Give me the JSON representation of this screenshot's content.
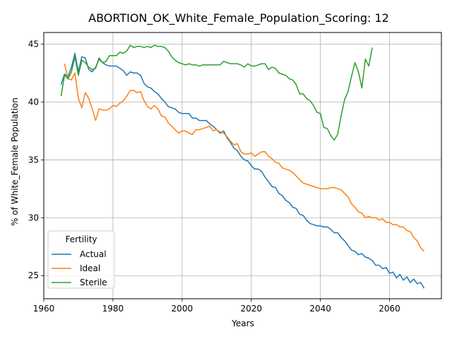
{
  "chart_data": {
    "type": "line",
    "title": "ABORTION_OK_White_Female_Population_Scoring: 12",
    "xlabel": "Years",
    "ylabel": "% of White_Female Population",
    "xlim": [
      1960,
      2075
    ],
    "ylim": [
      23,
      46
    ],
    "xticks": [
      1960,
      1980,
      2000,
      2020,
      2040,
      2060
    ],
    "yticks": [
      25,
      30,
      35,
      40,
      45
    ],
    "grid": true,
    "legend": {
      "title": "Fertility",
      "placement": "lower-left"
    },
    "series": [
      {
        "name": "Actual",
        "color": "#1f77b4",
        "points": [
          [
            1965,
            41.5
          ],
          [
            1966,
            42.4
          ],
          [
            1967,
            42.2
          ],
          [
            1968,
            43.0
          ],
          [
            1969,
            44.2
          ],
          [
            1970,
            42.6
          ],
          [
            1971,
            43.9
          ],
          [
            1972,
            43.8
          ],
          [
            1973,
            42.8
          ],
          [
            1974,
            42.6
          ],
          [
            1975,
            43.0
          ],
          [
            1976,
            43.7
          ],
          [
            1977,
            43.4
          ],
          [
            1978,
            43.2
          ],
          [
            1979,
            43.1
          ],
          [
            1980,
            43.1
          ],
          [
            1981,
            43.1
          ],
          [
            1982,
            42.9
          ],
          [
            1983,
            42.7
          ],
          [
            1984,
            42.3
          ],
          [
            1985,
            42.6
          ],
          [
            1986,
            42.5
          ],
          [
            1987,
            42.5
          ],
          [
            1988,
            42.3
          ],
          [
            1989,
            41.6
          ],
          [
            1990,
            41.3
          ],
          [
            1991,
            41.2
          ],
          [
            1992,
            40.9
          ],
          [
            1993,
            40.7
          ],
          [
            1994,
            40.3
          ],
          [
            1995,
            40.0
          ],
          [
            1996,
            39.6
          ],
          [
            1997,
            39.5
          ],
          [
            1998,
            39.4
          ],
          [
            1999,
            39.1
          ],
          [
            2000,
            39.0
          ],
          [
            2001,
            39.0
          ],
          [
            2002,
            39.0
          ],
          [
            2003,
            38.6
          ],
          [
            2004,
            38.6
          ],
          [
            2005,
            38.4
          ],
          [
            2006,
            38.4
          ],
          [
            2007,
            38.4
          ],
          [
            2008,
            38.1
          ],
          [
            2009,
            37.9
          ],
          [
            2010,
            37.6
          ],
          [
            2011,
            37.3
          ],
          [
            2012,
            37.5
          ],
          [
            2013,
            36.9
          ],
          [
            2014,
            36.5
          ],
          [
            2015,
            36.0
          ],
          [
            2016,
            35.8
          ],
          [
            2017,
            35.3
          ],
          [
            2018,
            35.0
          ],
          [
            2019,
            34.9
          ],
          [
            2020,
            34.5
          ],
          [
            2021,
            34.2
          ],
          [
            2022,
            34.2
          ],
          [
            2023,
            34.0
          ],
          [
            2024,
            33.5
          ],
          [
            2025,
            33.1
          ],
          [
            2026,
            32.7
          ],
          [
            2027,
            32.6
          ],
          [
            2028,
            32.1
          ],
          [
            2029,
            31.9
          ],
          [
            2030,
            31.5
          ],
          [
            2031,
            31.3
          ],
          [
            2032,
            30.9
          ],
          [
            2033,
            30.8
          ],
          [
            2034,
            30.3
          ],
          [
            2035,
            30.2
          ],
          [
            2036,
            29.8
          ],
          [
            2037,
            29.5
          ],
          [
            2038,
            29.4
          ],
          [
            2039,
            29.3
          ],
          [
            2040,
            29.3
          ],
          [
            2041,
            29.2
          ],
          [
            2042,
            29.2
          ],
          [
            2043,
            29.0
          ],
          [
            2044,
            28.7
          ],
          [
            2045,
            28.7
          ],
          [
            2046,
            28.3
          ],
          [
            2047,
            28.0
          ],
          [
            2048,
            27.6
          ],
          [
            2049,
            27.2
          ],
          [
            2050,
            27.1
          ],
          [
            2051,
            26.8
          ],
          [
            2052,
            26.9
          ],
          [
            2053,
            26.6
          ],
          [
            2054,
            26.5
          ],
          [
            2055,
            26.3
          ],
          [
            2056,
            25.9
          ],
          [
            2057,
            25.9
          ],
          [
            2058,
            25.6
          ],
          [
            2059,
            25.7
          ],
          [
            2060,
            25.2
          ],
          [
            2061,
            25.3
          ],
          [
            2062,
            24.8
          ],
          [
            2063,
            25.1
          ],
          [
            2064,
            24.6
          ],
          [
            2065,
            24.9
          ],
          [
            2066,
            24.4
          ],
          [
            2067,
            24.7
          ],
          [
            2068,
            24.3
          ],
          [
            2069,
            24.4
          ],
          [
            2070,
            23.9
          ]
        ]
      },
      {
        "name": "Ideal",
        "color": "#ff7f0e",
        "points": [
          [
            1966,
            43.3
          ],
          [
            1967,
            42.0
          ],
          [
            1968,
            41.9
          ],
          [
            1969,
            42.5
          ],
          [
            1970,
            40.3
          ],
          [
            1971,
            39.5
          ],
          [
            1972,
            40.8
          ],
          [
            1973,
            40.3
          ],
          [
            1974,
            39.4
          ],
          [
            1975,
            38.4
          ],
          [
            1976,
            39.4
          ],
          [
            1977,
            39.3
          ],
          [
            1978,
            39.3
          ],
          [
            1979,
            39.4
          ],
          [
            1980,
            39.7
          ],
          [
            1981,
            39.6
          ],
          [
            1982,
            39.9
          ],
          [
            1983,
            40.1
          ],
          [
            1984,
            40.5
          ],
          [
            1985,
            41.0
          ],
          [
            1986,
            41.0
          ],
          [
            1987,
            40.8
          ],
          [
            1988,
            40.9
          ],
          [
            1989,
            40.1
          ],
          [
            1990,
            39.6
          ],
          [
            1991,
            39.4
          ],
          [
            1992,
            39.7
          ],
          [
            1993,
            39.4
          ],
          [
            1994,
            38.8
          ],
          [
            1995,
            38.7
          ],
          [
            1996,
            38.2
          ],
          [
            1997,
            37.9
          ],
          [
            1998,
            37.6
          ],
          [
            1999,
            37.3
          ],
          [
            2000,
            37.5
          ],
          [
            2001,
            37.5
          ],
          [
            2002,
            37.3
          ],
          [
            2003,
            37.2
          ],
          [
            2004,
            37.6
          ],
          [
            2005,
            37.6
          ],
          [
            2006,
            37.7
          ],
          [
            2007,
            37.8
          ],
          [
            2008,
            37.9
          ],
          [
            2009,
            37.5
          ],
          [
            2010,
            37.6
          ],
          [
            2011,
            37.4
          ],
          [
            2012,
            37.3
          ],
          [
            2013,
            37.0
          ],
          [
            2014,
            36.6
          ],
          [
            2015,
            36.3
          ],
          [
            2016,
            36.4
          ],
          [
            2017,
            35.7
          ],
          [
            2018,
            35.5
          ],
          [
            2019,
            35.5
          ],
          [
            2020,
            35.6
          ],
          [
            2021,
            35.3
          ],
          [
            2022,
            35.5
          ],
          [
            2023,
            35.7
          ],
          [
            2024,
            35.7
          ],
          [
            2025,
            35.3
          ],
          [
            2026,
            35.1
          ],
          [
            2027,
            34.8
          ],
          [
            2028,
            34.7
          ],
          [
            2029,
            34.3
          ],
          [
            2030,
            34.2
          ],
          [
            2031,
            34.1
          ],
          [
            2032,
            33.9
          ],
          [
            2033,
            33.6
          ],
          [
            2034,
            33.3
          ],
          [
            2035,
            33.0
          ],
          [
            2036,
            32.9
          ],
          [
            2037,
            32.8
          ],
          [
            2038,
            32.7
          ],
          [
            2039,
            32.6
          ],
          [
            2040,
            32.5
          ],
          [
            2041,
            32.5
          ],
          [
            2042,
            32.5
          ],
          [
            2043,
            32.6
          ],
          [
            2044,
            32.6
          ],
          [
            2045,
            32.5
          ],
          [
            2046,
            32.4
          ],
          [
            2047,
            32.1
          ],
          [
            2048,
            31.8
          ],
          [
            2049,
            31.2
          ],
          [
            2050,
            30.9
          ],
          [
            2051,
            30.5
          ],
          [
            2052,
            30.4
          ],
          [
            2053,
            30.0
          ],
          [
            2054,
            30.1
          ],
          [
            2055,
            30.0
          ],
          [
            2056,
            30.0
          ],
          [
            2057,
            29.8
          ],
          [
            2058,
            29.9
          ],
          [
            2059,
            29.6
          ],
          [
            2060,
            29.6
          ],
          [
            2061,
            29.4
          ],
          [
            2062,
            29.4
          ],
          [
            2063,
            29.2
          ],
          [
            2064,
            29.2
          ],
          [
            2065,
            28.9
          ],
          [
            2066,
            28.8
          ],
          [
            2067,
            28.3
          ],
          [
            2068,
            28.0
          ],
          [
            2069,
            27.4
          ],
          [
            2070,
            27.1
          ]
        ]
      },
      {
        "name": "Sterile",
        "color": "#2ca02c",
        "points": [
          [
            1965,
            40.5
          ],
          [
            1966,
            42.3
          ],
          [
            1967,
            42.0
          ],
          [
            1968,
            42.6
          ],
          [
            1969,
            43.9
          ],
          [
            1970,
            42.3
          ],
          [
            1971,
            43.6
          ],
          [
            1972,
            43.4
          ],
          [
            1973,
            43.0
          ],
          [
            1974,
            42.8
          ],
          [
            1975,
            42.9
          ],
          [
            1976,
            43.8
          ],
          [
            1977,
            43.4
          ],
          [
            1978,
            43.5
          ],
          [
            1979,
            44.0
          ],
          [
            1980,
            44.0
          ],
          [
            1981,
            44.0
          ],
          [
            1982,
            44.3
          ],
          [
            1983,
            44.2
          ],
          [
            1984,
            44.4
          ],
          [
            1985,
            44.9
          ],
          [
            1986,
            44.7
          ],
          [
            1987,
            44.8
          ],
          [
            1988,
            44.8
          ],
          [
            1989,
            44.7
          ],
          [
            1990,
            44.8
          ],
          [
            1991,
            44.7
          ],
          [
            1992,
            44.9
          ],
          [
            1993,
            44.8
          ],
          [
            1994,
            44.8
          ],
          [
            1995,
            44.7
          ],
          [
            1996,
            44.4
          ],
          [
            1997,
            43.9
          ],
          [
            1998,
            43.6
          ],
          [
            1999,
            43.4
          ],
          [
            2000,
            43.3
          ],
          [
            2001,
            43.2
          ],
          [
            2002,
            43.3
          ],
          [
            2003,
            43.2
          ],
          [
            2004,
            43.2
          ],
          [
            2005,
            43.1
          ],
          [
            2006,
            43.2
          ],
          [
            2007,
            43.2
          ],
          [
            2008,
            43.2
          ],
          [
            2009,
            43.2
          ],
          [
            2010,
            43.2
          ],
          [
            2011,
            43.2
          ],
          [
            2012,
            43.5
          ],
          [
            2013,
            43.4
          ],
          [
            2014,
            43.3
          ],
          [
            2015,
            43.3
          ],
          [
            2016,
            43.3
          ],
          [
            2017,
            43.2
          ],
          [
            2018,
            43.0
          ],
          [
            2019,
            43.3
          ],
          [
            2020,
            43.1
          ],
          [
            2021,
            43.1
          ],
          [
            2022,
            43.2
          ],
          [
            2023,
            43.3
          ],
          [
            2024,
            43.3
          ],
          [
            2025,
            42.8
          ],
          [
            2026,
            43.0
          ],
          [
            2027,
            42.9
          ],
          [
            2028,
            42.5
          ],
          [
            2029,
            42.4
          ],
          [
            2030,
            42.3
          ],
          [
            2031,
            42.0
          ],
          [
            2032,
            41.9
          ],
          [
            2033,
            41.5
          ],
          [
            2034,
            40.7
          ],
          [
            2035,
            40.7
          ],
          [
            2036,
            40.3
          ],
          [
            2037,
            40.1
          ],
          [
            2038,
            39.7
          ],
          [
            2039,
            39.1
          ],
          [
            2040,
            39.0
          ],
          [
            2041,
            37.8
          ],
          [
            2042,
            37.7
          ],
          [
            2043,
            37.1
          ],
          [
            2044,
            36.7
          ],
          [
            2045,
            37.2
          ],
          [
            2046,
            38.8
          ],
          [
            2047,
            40.2
          ],
          [
            2048,
            40.9
          ],
          [
            2049,
            42.2
          ],
          [
            2050,
            43.4
          ],
          [
            2051,
            42.6
          ],
          [
            2052,
            41.2
          ],
          [
            2053,
            43.7
          ],
          [
            2054,
            43.1
          ],
          [
            2055,
            44.7
          ]
        ]
      }
    ]
  }
}
